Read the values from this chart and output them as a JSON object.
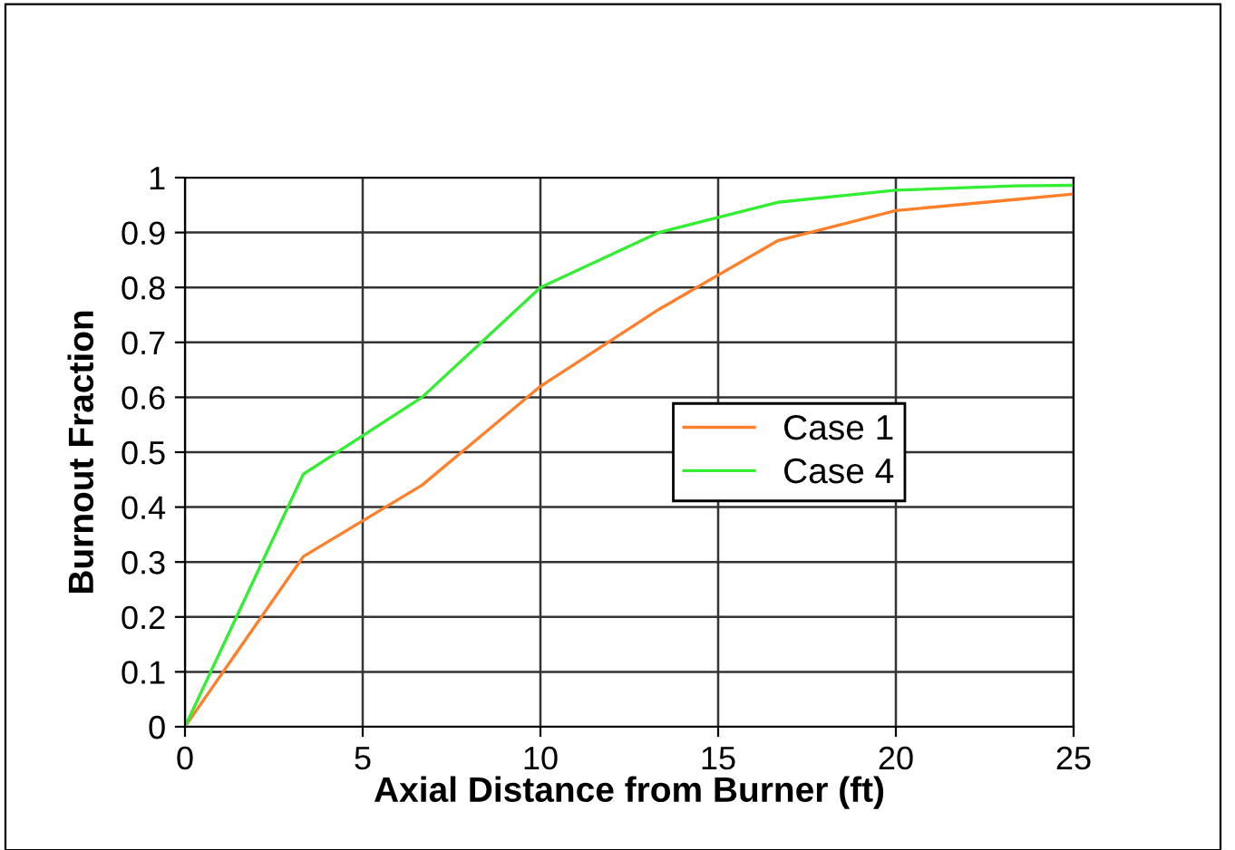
{
  "chart_data": {
    "type": "line",
    "xlabel": "Axial Distance from Burner (ft)",
    "ylabel": "Burnout Fraction",
    "x": [
      0,
      3.33,
      6.67,
      10,
      13.33,
      16.67,
      20,
      23.33,
      25
    ],
    "series": [
      {
        "name": "Case 1",
        "color": "#ff7f2a",
        "values": [
          0,
          0.31,
          0.44,
          0.62,
          0.76,
          0.885,
          0.94,
          0.96,
          0.97
        ]
      },
      {
        "name": "Case 4",
        "color": "#33ee33",
        "values": [
          0,
          0.46,
          0.6,
          0.8,
          0.9,
          0.955,
          0.977,
          0.985,
          0.986
        ]
      }
    ],
    "xlim": [
      0,
      25
    ],
    "xticks": [
      0,
      5,
      10,
      15,
      20,
      25
    ],
    "ylim": [
      0,
      1
    ],
    "yticks": [
      0,
      0.1,
      0.2,
      0.3,
      0.4,
      0.5,
      0.6,
      0.7,
      0.8,
      0.9,
      1
    ],
    "grid": true,
    "legend": "right",
    "marker": "none",
    "line_style": "solid"
  }
}
